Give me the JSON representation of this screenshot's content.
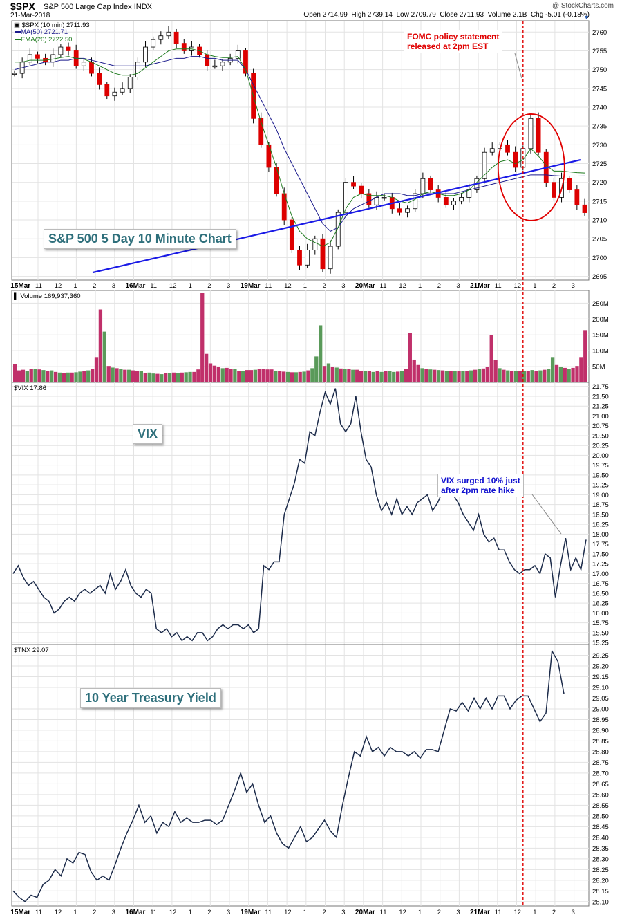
{
  "header": {
    "symbol": "$SPX",
    "name": "S&P 500 Large Cap Index",
    "exchange": "INDX",
    "date": "21-Mar-2018",
    "brand": "@ StockCharts.com",
    "open_label": "Open",
    "open": "2714.99",
    "high_label": "High",
    "high": "2739.14",
    "low_label": "Low",
    "low": "2709.79",
    "close_label": "Close",
    "close": "2711.93",
    "volume_label": "Volume",
    "volume": "2.1B",
    "chg_label": "Chg",
    "chg": "-5.01 (-0.18%)"
  },
  "legend": {
    "price": "$SPX (10 min) 2711.93",
    "ma": "MA(50) 2721.71",
    "ema": "EMA(20) 2722.50",
    "volume": "Volume 169,937,360",
    "vix": "$VIX 17.86",
    "tnx": "$TNX 29.07"
  },
  "annotations": {
    "spx_title": "S&P 500 5 Day 10 Minute Chart",
    "fomc_line1": "FOMC policy statement",
    "fomc_line2": "released at 2pm EST",
    "vix_title": "VIX",
    "vix_note_line1": "VIX surged 10% just",
    "vix_note_line2": "after 2pm rate hike",
    "tnx_title": "10 Year Treasury Yield"
  },
  "colors": {
    "up": "#ffffff",
    "down": "#dd0000",
    "ma50": "#1a1a8c",
    "ema20": "#1d7a1d",
    "trendline": "#1a1ae6",
    "vol_up": "#5a9a5a",
    "vol_down": "#c0306a",
    "line": "#1c2b4a",
    "grid": "#e3e3e3",
    "annotation_red": "#e00000"
  },
  "chart_data": [
    {
      "type": "candlestick",
      "title": "$SPX (10 min)",
      "ylim": [
        2694,
        2763
      ],
      "y_ticks": [
        2695,
        2700,
        2705,
        2710,
        2715,
        2720,
        2725,
        2730,
        2735,
        2740,
        2745,
        2750,
        2755,
        2760
      ],
      "x_tick_labels": [
        "15Mar",
        "11",
        "12",
        "1",
        "2",
        "3",
        "16Mar",
        "11",
        "12",
        "1",
        "2",
        "3",
        "19Mar",
        "11",
        "12",
        "1",
        "2",
        "3",
        "20Mar",
        "11",
        "12",
        "1",
        "2",
        "3",
        "21Mar",
        "11",
        "12",
        "1",
        "2",
        "3"
      ],
      "closes": [
        2749,
        2752,
        2754,
        2753,
        2752,
        2754,
        2756,
        2755,
        2751,
        2752,
        2749,
        2746,
        2743,
        2744,
        2745,
        2748,
        2752,
        2756,
        2758,
        2759,
        2760,
        2757,
        2755,
        2756,
        2754,
        2751,
        2751,
        2752,
        2753,
        2755,
        2749,
        2737,
        2730,
        2724,
        2717,
        2710,
        2702,
        2698,
        2702,
        2705,
        2697,
        2703,
        2712,
        2720,
        2719,
        2717,
        2714,
        2716,
        2716,
        2713,
        2712,
        2713,
        2717,
        2721,
        2718,
        2716,
        2714,
        2715,
        2716,
        2718,
        2721,
        2728,
        2729,
        2730,
        2728,
        2724,
        2729,
        2737,
        2728,
        2720,
        2716,
        2721,
        2718,
        2714,
        2711.93
      ],
      "ma50": [
        2750,
        2750.5,
        2751,
        2751.5,
        2752,
        2752,
        2752.5,
        2752.5,
        2753,
        2753,
        2752.5,
        2752,
        2751.5,
        2751,
        2751,
        2751,
        2751,
        2751,
        2751.5,
        2752,
        2752.5,
        2753,
        2753,
        2753.5,
        2753.5,
        2753,
        2753,
        2752.5,
        2752.5,
        2752.5,
        2750,
        2746,
        2742,
        2738,
        2734,
        2729,
        2725,
        2721,
        2717,
        2713,
        2709,
        2707,
        2708,
        2711,
        2713,
        2714,
        2715,
        2716,
        2717,
        2717,
        2717,
        2716.5,
        2716.5,
        2717,
        2717,
        2717,
        2717,
        2717,
        2717.5,
        2718,
        2718.5,
        2719,
        2719.5,
        2720,
        2720.5,
        2721,
        2721.5,
        2722,
        2722,
        2722,
        2721.8,
        2721.7,
        2721.7,
        2721.7,
        2721.71
      ],
      "ema20": [
        2752,
        2752,
        2752.5,
        2752.5,
        2752.5,
        2752.8,
        2753.2,
        2753.5,
        2753,
        2752.8,
        2752,
        2751,
        2750,
        2749,
        2748.5,
        2748.5,
        2749,
        2750.5,
        2752,
        2753.5,
        2755,
        2755.5,
        2755.5,
        2755.5,
        2755,
        2754,
        2753.5,
        2753.2,
        2753.2,
        2753.5,
        2750,
        2743,
        2736,
        2730,
        2724,
        2717,
        2711,
        2707,
        2705,
        2704,
        2703,
        2704,
        2708,
        2713,
        2716,
        2717,
        2716.5,
        2716.5,
        2716.5,
        2716,
        2715,
        2714.5,
        2715.5,
        2717,
        2717.5,
        2717,
        2716.5,
        2716.5,
        2717,
        2718,
        2720,
        2722,
        2724,
        2725.5,
        2726,
        2725,
        2726,
        2729,
        2727,
        2724.5,
        2723,
        2723,
        2722.8,
        2722.6,
        2722.5
      ],
      "trendline": [
        [
          2696,
          0.14
        ],
        [
          2726,
          0.94
        ]
      ],
      "events": [
        {
          "label": "2pm FOMC",
          "x_fraction": 0.9,
          "closes_index": 66
        }
      ]
    },
    {
      "type": "bar",
      "title": "Volume",
      "ylim": [
        0,
        290
      ],
      "y_ticks_label": [
        "50M",
        "100M",
        "150M",
        "200M",
        "250M"
      ],
      "y_ticks": [
        50,
        100,
        150,
        200,
        250
      ],
      "values_millions": [
        58,
        38,
        40,
        37,
        43,
        42,
        41,
        39,
        36,
        38,
        33,
        31,
        30,
        31,
        31,
        32,
        34,
        36,
        38,
        42,
        80,
        230,
        160,
        52,
        47,
        45,
        42,
        40,
        40,
        38,
        36,
        37,
        30,
        31,
        28,
        27,
        26,
        29,
        30,
        31,
        30,
        31,
        32,
        33,
        33,
        41,
        283,
        90,
        60,
        53,
        50,
        45,
        46,
        42,
        43,
        37,
        36,
        39,
        39,
        40,
        42,
        43,
        41,
        41,
        36,
        35,
        34,
        33,
        32,
        32,
        33,
        34,
        38,
        45,
        82,
        180,
        52,
        60,
        48,
        47,
        44,
        43,
        42,
        40,
        40,
        37,
        35,
        35,
        33,
        35,
        33,
        35,
        36,
        33,
        34,
        36,
        42,
        155,
        72,
        55,
        45,
        42,
        41,
        40,
        39,
        38,
        36,
        37,
        36,
        35,
        35,
        36,
        38,
        40,
        42,
        44,
        48,
        150,
        70,
        45,
        40,
        38,
        37,
        36,
        36,
        36,
        37,
        39,
        37,
        38,
        40,
        42,
        80,
        55,
        50,
        46,
        42,
        46,
        52,
        80,
        165
      ],
      "down_flags": [
        1,
        1,
        1,
        0,
        1,
        0,
        1,
        0,
        1,
        0,
        1,
        0,
        1,
        0,
        1,
        0,
        0,
        1,
        0,
        1,
        1,
        1,
        0,
        1,
        0,
        1,
        0,
        1,
        0,
        1,
        1,
        0,
        1,
        0,
        0,
        1,
        0,
        1,
        0,
        1,
        0,
        1,
        0,
        0,
        1,
        1,
        1,
        1,
        1,
        1,
        1,
        0,
        1,
        1,
        0,
        1,
        0,
        1,
        1,
        0,
        1,
        1,
        1,
        1,
        0,
        1,
        1,
        0,
        1,
        0,
        1,
        0,
        1,
        0,
        0,
        0,
        1,
        0,
        1,
        0,
        1,
        0,
        1,
        0,
        1,
        1,
        0,
        1,
        0,
        1,
        0,
        1,
        0,
        0,
        1,
        0,
        1,
        1,
        1,
        1,
        0,
        1,
        0,
        1,
        0,
        1,
        0,
        1,
        0,
        1,
        0,
        1,
        0,
        1,
        0,
        1,
        1,
        1,
        1,
        0,
        1,
        0,
        1,
        0,
        1,
        0,
        1,
        0,
        1,
        0,
        1,
        0,
        0,
        1,
        0,
        1,
        0,
        1,
        1,
        1,
        1
      ]
    },
    {
      "type": "line",
      "title": "$VIX",
      "ylim": [
        15.2,
        21.85
      ],
      "y_ticks": [
        15.25,
        15.5,
        15.75,
        16.0,
        16.25,
        16.5,
        16.75,
        17.0,
        17.25,
        17.5,
        17.75,
        18.0,
        18.25,
        18.5,
        18.75,
        19.0,
        19.25,
        19.5,
        19.75,
        20.0,
        20.25,
        20.5,
        20.75,
        21.0,
        21.25,
        21.5,
        21.75
      ],
      "values": [
        17.0,
        17.2,
        16.9,
        16.7,
        16.8,
        16.6,
        16.4,
        16.3,
        16.0,
        16.1,
        16.3,
        16.4,
        16.3,
        16.5,
        16.6,
        16.5,
        16.6,
        16.7,
        16.5,
        17.0,
        16.6,
        16.8,
        17.1,
        16.7,
        16.5,
        16.4,
        16.6,
        16.5,
        15.6,
        15.5,
        15.6,
        15.4,
        15.5,
        15.3,
        15.4,
        15.3,
        15.5,
        15.5,
        15.3,
        15.4,
        15.6,
        15.7,
        15.6,
        15.7,
        15.7,
        15.6,
        15.7,
        15.5,
        15.6,
        17.2,
        17.1,
        17.3,
        17.3,
        18.5,
        18.9,
        19.3,
        19.9,
        19.8,
        20.6,
        20.5,
        21.1,
        21.6,
        21.3,
        21.7,
        20.8,
        20.6,
        20.8,
        21.5,
        20.6,
        19.9,
        19.7,
        19.0,
        18.6,
        18.8,
        18.5,
        18.9,
        18.5,
        18.7,
        18.5,
        18.8,
        18.9,
        19.0,
        18.6,
        18.8,
        19.1,
        19.3,
        19.0,
        18.8,
        18.5,
        18.3,
        18.1,
        18.5,
        18.0,
        17.8,
        17.9,
        17.6,
        17.6,
        17.3,
        17.1,
        17.0,
        17.1,
        17.1,
        17.2,
        17.0,
        17.5,
        17.4,
        16.4,
        17.2,
        17.9,
        17.1,
        17.4,
        17.1,
        17.86
      ],
      "event_index": 104
    },
    {
      "type": "line",
      "title": "$TNX",
      "ylim": [
        28.08,
        29.3
      ],
      "y_ticks": [
        28.1,
        28.15,
        28.2,
        28.25,
        28.3,
        28.35,
        28.4,
        28.45,
        28.5,
        28.55,
        28.6,
        28.65,
        28.7,
        28.75,
        28.8,
        28.85,
        28.9,
        28.95,
        29.0,
        29.05,
        29.1,
        29.15,
        29.2,
        29.25
      ],
      "values": [
        28.15,
        28.12,
        28.1,
        28.13,
        28.12,
        28.18,
        28.2,
        28.25,
        28.22,
        28.3,
        28.28,
        28.33,
        28.32,
        28.24,
        28.2,
        28.22,
        28.2,
        28.27,
        28.35,
        28.42,
        28.48,
        28.55,
        28.47,
        28.5,
        28.42,
        28.47,
        28.45,
        28.52,
        28.47,
        28.49,
        28.47,
        28.47,
        28.48,
        28.48,
        28.46,
        28.48,
        28.55,
        28.62,
        28.7,
        28.61,
        28.65,
        28.55,
        28.47,
        28.5,
        28.42,
        28.37,
        28.35,
        28.4,
        28.45,
        28.38,
        28.4,
        28.44,
        28.48,
        28.43,
        28.4,
        28.55,
        28.68,
        28.8,
        28.78,
        28.87,
        28.8,
        28.82,
        28.78,
        28.82,
        28.8,
        28.8,
        28.78,
        28.8,
        28.77,
        28.81,
        28.81,
        28.8,
        28.9,
        29.0,
        28.99,
        29.03,
        28.99,
        29.05,
        29.0,
        29.05,
        29.0,
        29.06,
        29.06,
        29.0,
        29.04,
        29.06,
        29.06,
        29.0,
        28.94,
        28.98,
        29.27,
        29.22,
        29.07
      ],
      "event_index": 88
    }
  ]
}
